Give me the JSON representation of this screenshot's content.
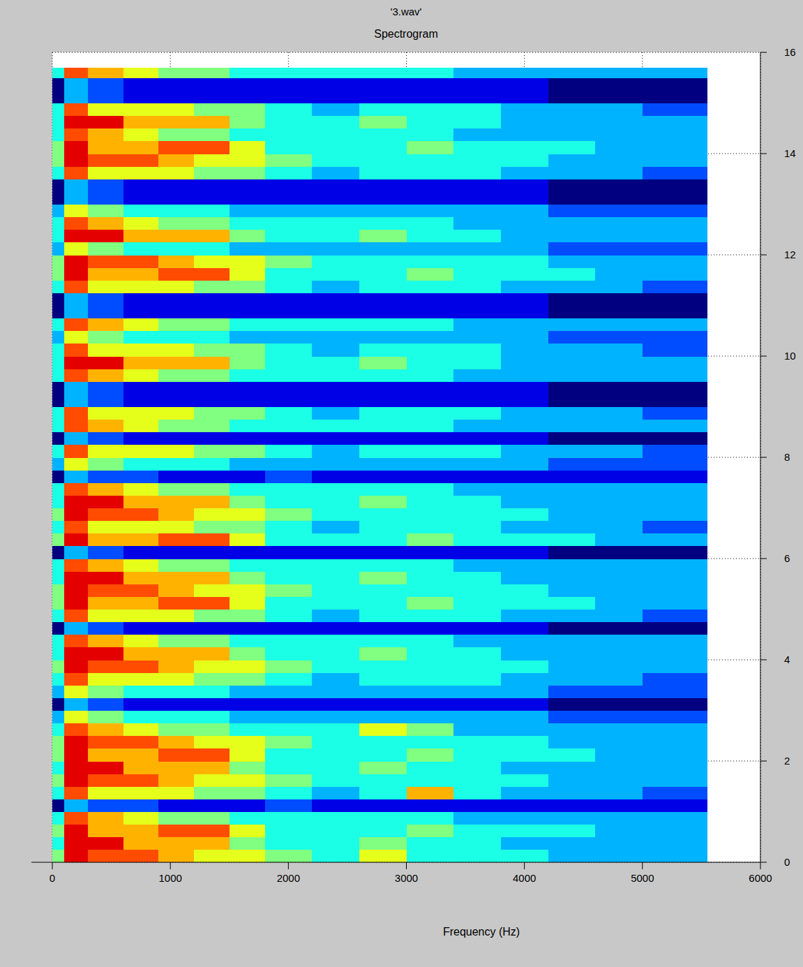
{
  "chart_data": {
    "type": "heatmap",
    "title": "'3.wav'",
    "subtitle": "Spectrogram",
    "x_label": "Frequency (Hz)",
    "xlim": [
      0,
      6000
    ],
    "xticks": [
      0,
      1000,
      2000,
      3000,
      4000,
      5000,
      6000
    ],
    "ylim": [
      0,
      16
    ],
    "yticks": [
      0,
      2,
      4,
      6,
      8,
      10,
      12,
      14,
      16
    ],
    "grid": true,
    "zlim": [
      0,
      10
    ],
    "x_bins": [
      0,
      100,
      300,
      600,
      900,
      1200,
      1500,
      1800,
      2200,
      2600,
      3000,
      3400,
      3800,
      4200,
      4600,
      5000,
      5550
    ],
    "y_bins": [
      0,
      0.25,
      0.5,
      0.75,
      1,
      1.25,
      1.5,
      1.75,
      2,
      2.25,
      2.5,
      2.75,
      3,
      3.25,
      3.5,
      3.75,
      4,
      4.25,
      4.5,
      4.75,
      5,
      5.25,
      5.5,
      5.75,
      6,
      6.25,
      6.5,
      6.75,
      7,
      7.25,
      7.5,
      7.75,
      8,
      8.25,
      8.5,
      8.75,
      9,
      9.25,
      9.5,
      9.75,
      10,
      10.25,
      10.5,
      10.75,
      11,
      11.25,
      11.5,
      11.75,
      12,
      12.25,
      12.5,
      12.75,
      13,
      13.25,
      13.5,
      13.75,
      14,
      14.25,
      14.5,
      14.75,
      15,
      15.25,
      15.5,
      15.7
    ],
    "cells": [
      [
        5,
        9,
        8,
        8,
        7,
        6,
        6,
        5,
        4,
        6,
        4,
        4,
        4,
        3,
        3,
        3
      ],
      [
        4,
        9,
        9,
        7,
        7,
        7,
        5,
        4,
        4,
        5,
        4,
        4,
        3,
        3,
        3,
        3
      ],
      [
        5,
        9,
        7,
        7,
        8,
        8,
        6,
        4,
        4,
        4,
        5,
        4,
        4,
        4,
        3,
        3
      ],
      [
        4,
        8,
        7,
        6,
        5,
        5,
        4,
        4,
        4,
        4,
        4,
        3,
        3,
        3,
        3,
        3
      ],
      [
        0,
        3,
        2,
        2,
        1,
        1,
        1,
        2,
        1,
        1,
        1,
        1,
        1,
        1,
        1,
        1
      ],
      [
        4,
        8,
        6,
        6,
        6,
        5,
        5,
        4,
        3,
        4,
        7,
        4,
        3,
        3,
        3,
        2
      ],
      [
        5,
        9,
        8,
        8,
        7,
        6,
        6,
        5,
        4,
        4,
        4,
        4,
        4,
        3,
        3,
        3
      ],
      [
        4,
        9,
        9,
        7,
        7,
        7,
        5,
        4,
        4,
        5,
        4,
        4,
        3,
        3,
        3,
        3
      ],
      [
        5,
        9,
        7,
        7,
        8,
        8,
        6,
        4,
        4,
        4,
        5,
        4,
        4,
        4,
        3,
        3
      ],
      [
        5,
        9,
        8,
        8,
        7,
        6,
        6,
        5,
        4,
        4,
        4,
        4,
        4,
        3,
        3,
        3
      ],
      [
        4,
        8,
        7,
        6,
        5,
        5,
        4,
        4,
        4,
        6,
        5,
        3,
        3,
        3,
        3,
        3
      ],
      [
        3,
        6,
        5,
        4,
        4,
        4,
        3,
        3,
        3,
        3,
        3,
        3,
        3,
        2,
        2,
        2
      ],
      [
        0,
        3,
        2,
        1,
        1,
        1,
        1,
        1,
        1,
        1,
        1,
        1,
        1,
        0,
        0,
        0
      ],
      [
        3,
        6,
        5,
        4,
        4,
        4,
        3,
        3,
        3,
        3,
        3,
        3,
        3,
        2,
        2,
        2
      ],
      [
        4,
        8,
        6,
        6,
        6,
        5,
        5,
        4,
        3,
        4,
        4,
        4,
        3,
        3,
        3,
        2
      ],
      [
        5,
        9,
        8,
        8,
        7,
        6,
        6,
        5,
        4,
        4,
        4,
        4,
        4,
        3,
        3,
        3
      ],
      [
        4,
        9,
        9,
        7,
        7,
        7,
        5,
        4,
        4,
        5,
        4,
        4,
        3,
        3,
        3,
        3
      ],
      [
        4,
        8,
        7,
        6,
        5,
        5,
        4,
        4,
        4,
        4,
        4,
        3,
        3,
        3,
        3,
        3
      ],
      [
        0,
        3,
        2,
        1,
        1,
        1,
        1,
        1,
        1,
        1,
        1,
        1,
        1,
        0,
        0,
        0
      ],
      [
        4,
        8,
        6,
        6,
        6,
        5,
        5,
        4,
        3,
        4,
        4,
        4,
        3,
        3,
        3,
        2
      ],
      [
        5,
        9,
        7,
        7,
        8,
        8,
        6,
        4,
        4,
        4,
        5,
        4,
        4,
        4,
        3,
        3
      ],
      [
        5,
        9,
        8,
        8,
        7,
        6,
        6,
        5,
        4,
        4,
        4,
        4,
        4,
        3,
        3,
        3
      ],
      [
        4,
        9,
        9,
        7,
        7,
        7,
        5,
        4,
        4,
        5,
        4,
        4,
        3,
        3,
        3,
        3
      ],
      [
        4,
        8,
        7,
        6,
        5,
        5,
        4,
        4,
        4,
        4,
        4,
        3,
        3,
        3,
        3,
        3
      ],
      [
        0,
        3,
        2,
        1,
        1,
        1,
        1,
        1,
        1,
        1,
        1,
        1,
        1,
        0,
        0,
        0
      ],
      [
        5,
        9,
        7,
        7,
        8,
        8,
        6,
        4,
        4,
        4,
        5,
        4,
        4,
        4,
        3,
        3
      ],
      [
        4,
        8,
        6,
        6,
        6,
        5,
        5,
        4,
        3,
        4,
        4,
        4,
        3,
        3,
        3,
        2
      ],
      [
        5,
        9,
        8,
        8,
        7,
        6,
        6,
        5,
        4,
        4,
        4,
        4,
        4,
        3,
        3,
        3
      ],
      [
        4,
        9,
        9,
        7,
        7,
        7,
        5,
        4,
        4,
        5,
        4,
        4,
        3,
        3,
        3,
        3
      ],
      [
        4,
        8,
        7,
        6,
        5,
        5,
        4,
        4,
        4,
        4,
        4,
        3,
        3,
        3,
        3,
        3
      ],
      [
        0,
        3,
        2,
        2,
        1,
        1,
        1,
        2,
        1,
        1,
        1,
        1,
        1,
        1,
        1,
        1
      ],
      [
        3,
        6,
        5,
        4,
        4,
        4,
        3,
        3,
        3,
        3,
        3,
        3,
        3,
        2,
        2,
        2
      ],
      [
        4,
        8,
        6,
        6,
        6,
        5,
        5,
        4,
        3,
        4,
        4,
        4,
        3,
        3,
        3,
        2
      ],
      [
        0,
        3,
        2,
        1,
        1,
        1,
        1,
        1,
        1,
        1,
        1,
        1,
        1,
        0,
        0,
        0
      ],
      [
        4,
        8,
        7,
        6,
        5,
        5,
        4,
        4,
        4,
        4,
        4,
        3,
        3,
        3,
        3,
        3
      ],
      [
        4,
        8,
        6,
        6,
        6,
        5,
        5,
        4,
        3,
        4,
        4,
        4,
        3,
        3,
        3,
        2
      ],
      [
        0,
        3,
        2,
        1,
        1,
        1,
        1,
        1,
        1,
        1,
        1,
        1,
        1,
        0,
        0,
        0
      ],
      [
        0,
        3,
        2,
        1,
        1,
        1,
        1,
        1,
        1,
        1,
        1,
        1,
        1,
        0,
        0,
        0
      ],
      [
        4,
        8,
        7,
        6,
        5,
        5,
        4,
        4,
        4,
        4,
        4,
        3,
        3,
        3,
        3,
        3
      ],
      [
        4,
        9,
        9,
        7,
        7,
        7,
        5,
        4,
        4,
        5,
        4,
        4,
        3,
        3,
        3,
        3
      ],
      [
        4,
        8,
        6,
        6,
        6,
        5,
        5,
        4,
        3,
        4,
        4,
        4,
        3,
        3,
        3,
        2
      ],
      [
        3,
        6,
        5,
        4,
        4,
        4,
        3,
        3,
        3,
        3,
        3,
        3,
        3,
        2,
        2,
        2
      ],
      [
        4,
        8,
        7,
        6,
        5,
        5,
        4,
        4,
        4,
        4,
        4,
        3,
        3,
        3,
        3,
        3
      ],
      [
        0,
        3,
        2,
        1,
        1,
        1,
        1,
        1,
        1,
        1,
        1,
        1,
        1,
        0,
        0,
        0
      ],
      [
        0,
        3,
        2,
        1,
        1,
        1,
        1,
        1,
        1,
        1,
        1,
        1,
        1,
        0,
        0,
        0
      ],
      [
        4,
        8,
        6,
        6,
        6,
        5,
        5,
        4,
        3,
        4,
        4,
        4,
        3,
        3,
        3,
        2
      ],
      [
        5,
        9,
        7,
        7,
        8,
        8,
        6,
        4,
        4,
        4,
        5,
        4,
        4,
        4,
        3,
        3
      ],
      [
        5,
        9,
        8,
        8,
        7,
        6,
        6,
        5,
        4,
        4,
        4,
        4,
        4,
        3,
        3,
        3
      ],
      [
        3,
        6,
        5,
        4,
        4,
        4,
        3,
        3,
        3,
        3,
        3,
        3,
        3,
        2,
        2,
        2
      ],
      [
        4,
        9,
        9,
        7,
        7,
        7,
        5,
        4,
        4,
        5,
        4,
        4,
        3,
        3,
        3,
        3
      ],
      [
        4,
        8,
        7,
        6,
        5,
        5,
        4,
        4,
        4,
        4,
        4,
        3,
        3,
        3,
        3,
        3
      ],
      [
        3,
        6,
        5,
        4,
        4,
        4,
        3,
        3,
        3,
        3,
        3,
        3,
        3,
        2,
        2,
        2
      ],
      [
        0,
        3,
        2,
        1,
        1,
        1,
        1,
        1,
        1,
        1,
        1,
        1,
        1,
        0,
        0,
        0
      ],
      [
        0,
        3,
        2,
        1,
        1,
        1,
        1,
        1,
        1,
        1,
        1,
        1,
        1,
        0,
        0,
        0
      ],
      [
        4,
        8,
        6,
        6,
        6,
        5,
        5,
        4,
        3,
        4,
        4,
        4,
        3,
        3,
        3,
        2
      ],
      [
        5,
        9,
        8,
        8,
        7,
        6,
        6,
        5,
        4,
        4,
        4,
        4,
        4,
        3,
        3,
        3
      ],
      [
        5,
        9,
        7,
        7,
        8,
        8,
        6,
        4,
        4,
        4,
        5,
        4,
        4,
        4,
        3,
        3
      ],
      [
        4,
        8,
        7,
        6,
        5,
        5,
        4,
        4,
        4,
        4,
        4,
        3,
        3,
        3,
        3,
        3
      ],
      [
        4,
        9,
        9,
        7,
        7,
        7,
        5,
        4,
        4,
        5,
        4,
        4,
        3,
        3,
        3,
        3
      ],
      [
        4,
        8,
        6,
        6,
        6,
        5,
        5,
        4,
        3,
        4,
        4,
        4,
        3,
        3,
        3,
        2
      ],
      [
        0,
        3,
        2,
        1,
        1,
        1,
        1,
        1,
        1,
        1,
        1,
        1,
        1,
        0,
        0,
        0
      ],
      [
        0,
        3,
        2,
        1,
        1,
        1,
        1,
        1,
        1,
        1,
        1,
        1,
        1,
        0,
        0,
        0
      ],
      [
        4,
        8,
        7,
        6,
        5,
        5,
        4,
        4,
        4,
        4,
        4,
        3,
        3,
        3,
        3,
        3
      ]
    ]
  }
}
